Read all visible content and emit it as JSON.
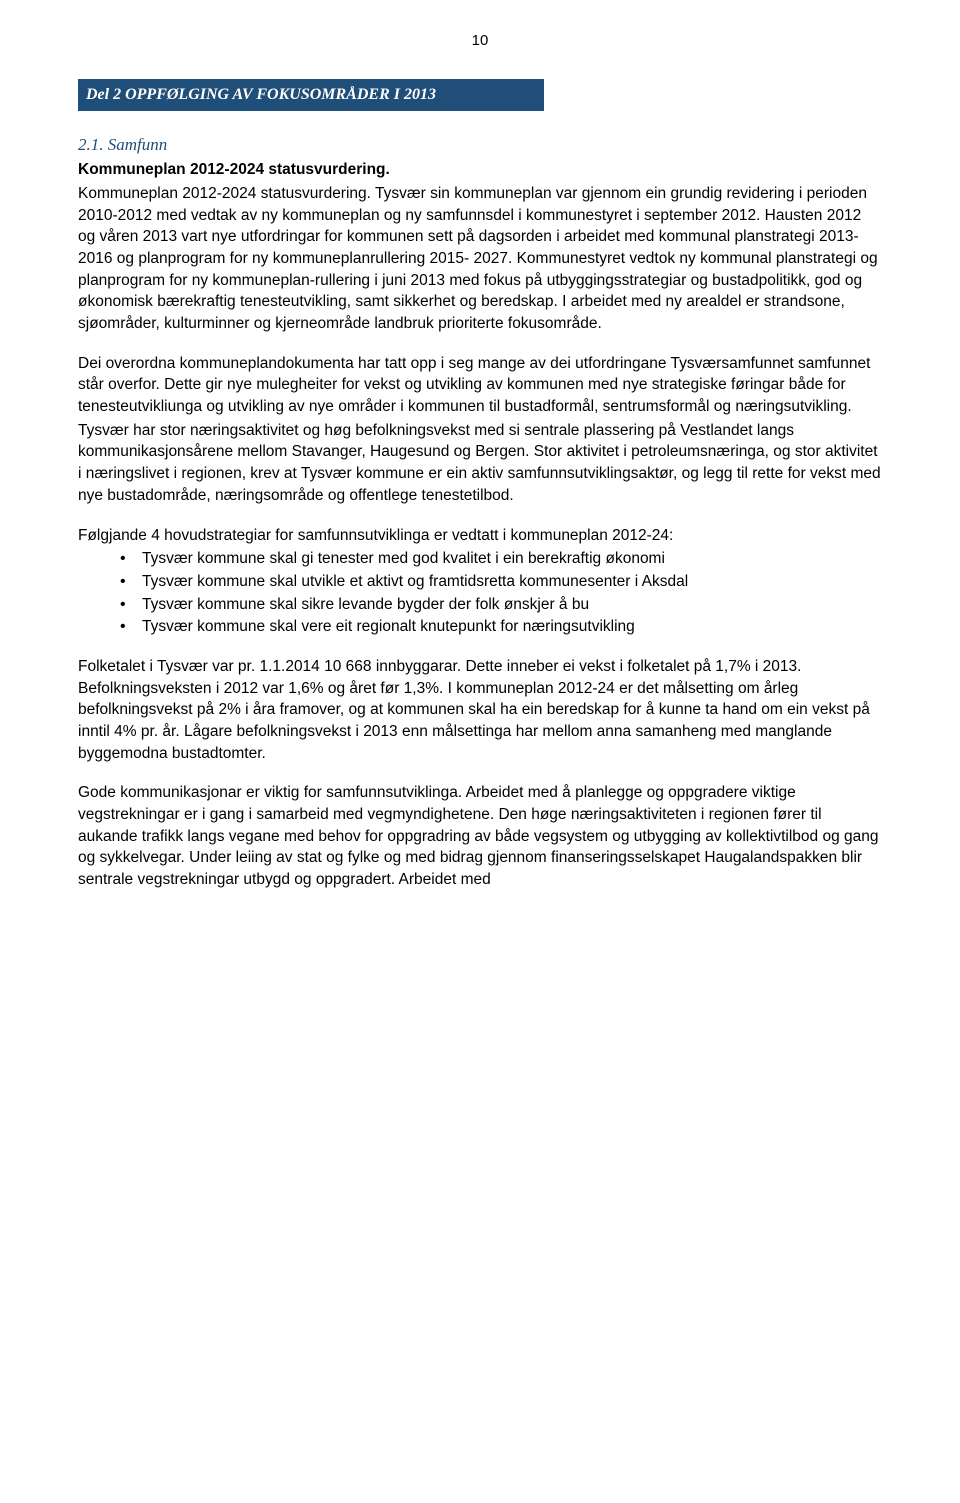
{
  "page_number": "10",
  "banner": "Del 2 OPPFØLGING AV FOKUSOMRÅDER I 2013",
  "subheading": "2.1. Samfunn",
  "bold_line": "Kommuneplan 2012-2024 statusvurdering.",
  "para1": "Kommuneplan 2012-2024 statusvurdering. Tysvær sin kommuneplan var gjennom ein grundig revidering i perioden 2010-2012 med vedtak av ny kommuneplan og ny samfunnsdel i kommunestyret i september 2012. Hausten 2012 og våren 2013 vart nye utfordringar for kommunen sett på dagsorden i arbeidet med kommunal planstrategi 2013-2016 og planprogram for ny kommuneplanrullering 2015- 2027. Kommunestyret vedtok ny kommunal planstrategi og planprogram for ny kommuneplan-rullering i juni 2013 med fokus på utbyggingsstrategiar og bustadpolitikk, god og økonomisk bærekraftig tenesteutvikling, samt sikkerhet og beredskap. I arbeidet med ny arealdel er strandsone, sjøområder, kulturminner og kjerneområde landbruk prioriterte fokusområde.",
  "para2": "Dei overordna kommuneplandokumenta har tatt opp i seg mange av dei utfordringane Tysværsamfunnet samfunnet står overfor. Dette gir nye mulegheiter for vekst og utvikling av kommunen med nye strategiske føringar både for tenesteutvikliunga og utvikling av nye områder i kommunen til bustadformål, sentrumsformål og næringsutvikling.",
  "para3": "Tysvær har stor næringsaktivitet og høg befolkningsvekst med si sentrale plassering på Vestlandet langs kommunikasjonsårene mellom Stavanger, Haugesund og Bergen. Stor aktivitet i petroleumsnæringa, og stor aktivitet i næringslivet i regionen, krev at Tysvær kommune er ein aktiv samfunnsutviklingsaktør, og legg til rette for vekst med nye bustadområde, næringsområde og offentlege tenestetilbod.",
  "para4_intro": "Følgjande 4 hovudstrategiar for samfunnsutviklinga er vedtatt i kommuneplan 2012-24:",
  "bullets": [
    "Tysvær kommune skal gi tenester med god kvalitet i ein berekraftig økonomi",
    "Tysvær kommune skal utvikle et aktivt og framtidsretta kommunesenter i Aksdal",
    "Tysvær kommune skal sikre levande bygder der folk ønskjer å bu",
    "Tysvær kommune skal vere eit regionalt knutepunkt for næringsutvikling"
  ],
  "para5": "Folketalet i Tysvær var pr. 1.1.2014  10 668 innbyggarar. Dette inneber ei vekst i folketalet på 1,7% i 2013. Befolkningsveksten i 2012 var 1,6% og året før 1,3%.  I kommuneplan 2012-24 er det målsetting om årleg befolkningsvekst på 2% i åra framover, og at kommunen skal ha ein beredskap for å kunne ta hand om ein vekst på inntil 4% pr. år. Lågare befolkningsvekst i 2013 enn målsettinga har mellom anna samanheng med manglande byggemodna bustadtomter.",
  "para6": "Gode kommunikasjonar er viktig for samfunnsutviklinga. Arbeidet med å planlegge og oppgradere viktige vegstrekningar er i gang i samarbeid med vegmyndighetene. Den høge næringsaktiviteten i regionen fører til aukande trafikk langs vegane med behov for oppgradring av både vegsystem og utbygging av kollektivtilbod og gang og sykkelvegar. Under leiing av stat og fylke og med bidrag gjennom finanseringsselskapet Haugalandspakken blir sentrale vegstrekningar utbygd og oppgradert. Arbeidet med"
}
